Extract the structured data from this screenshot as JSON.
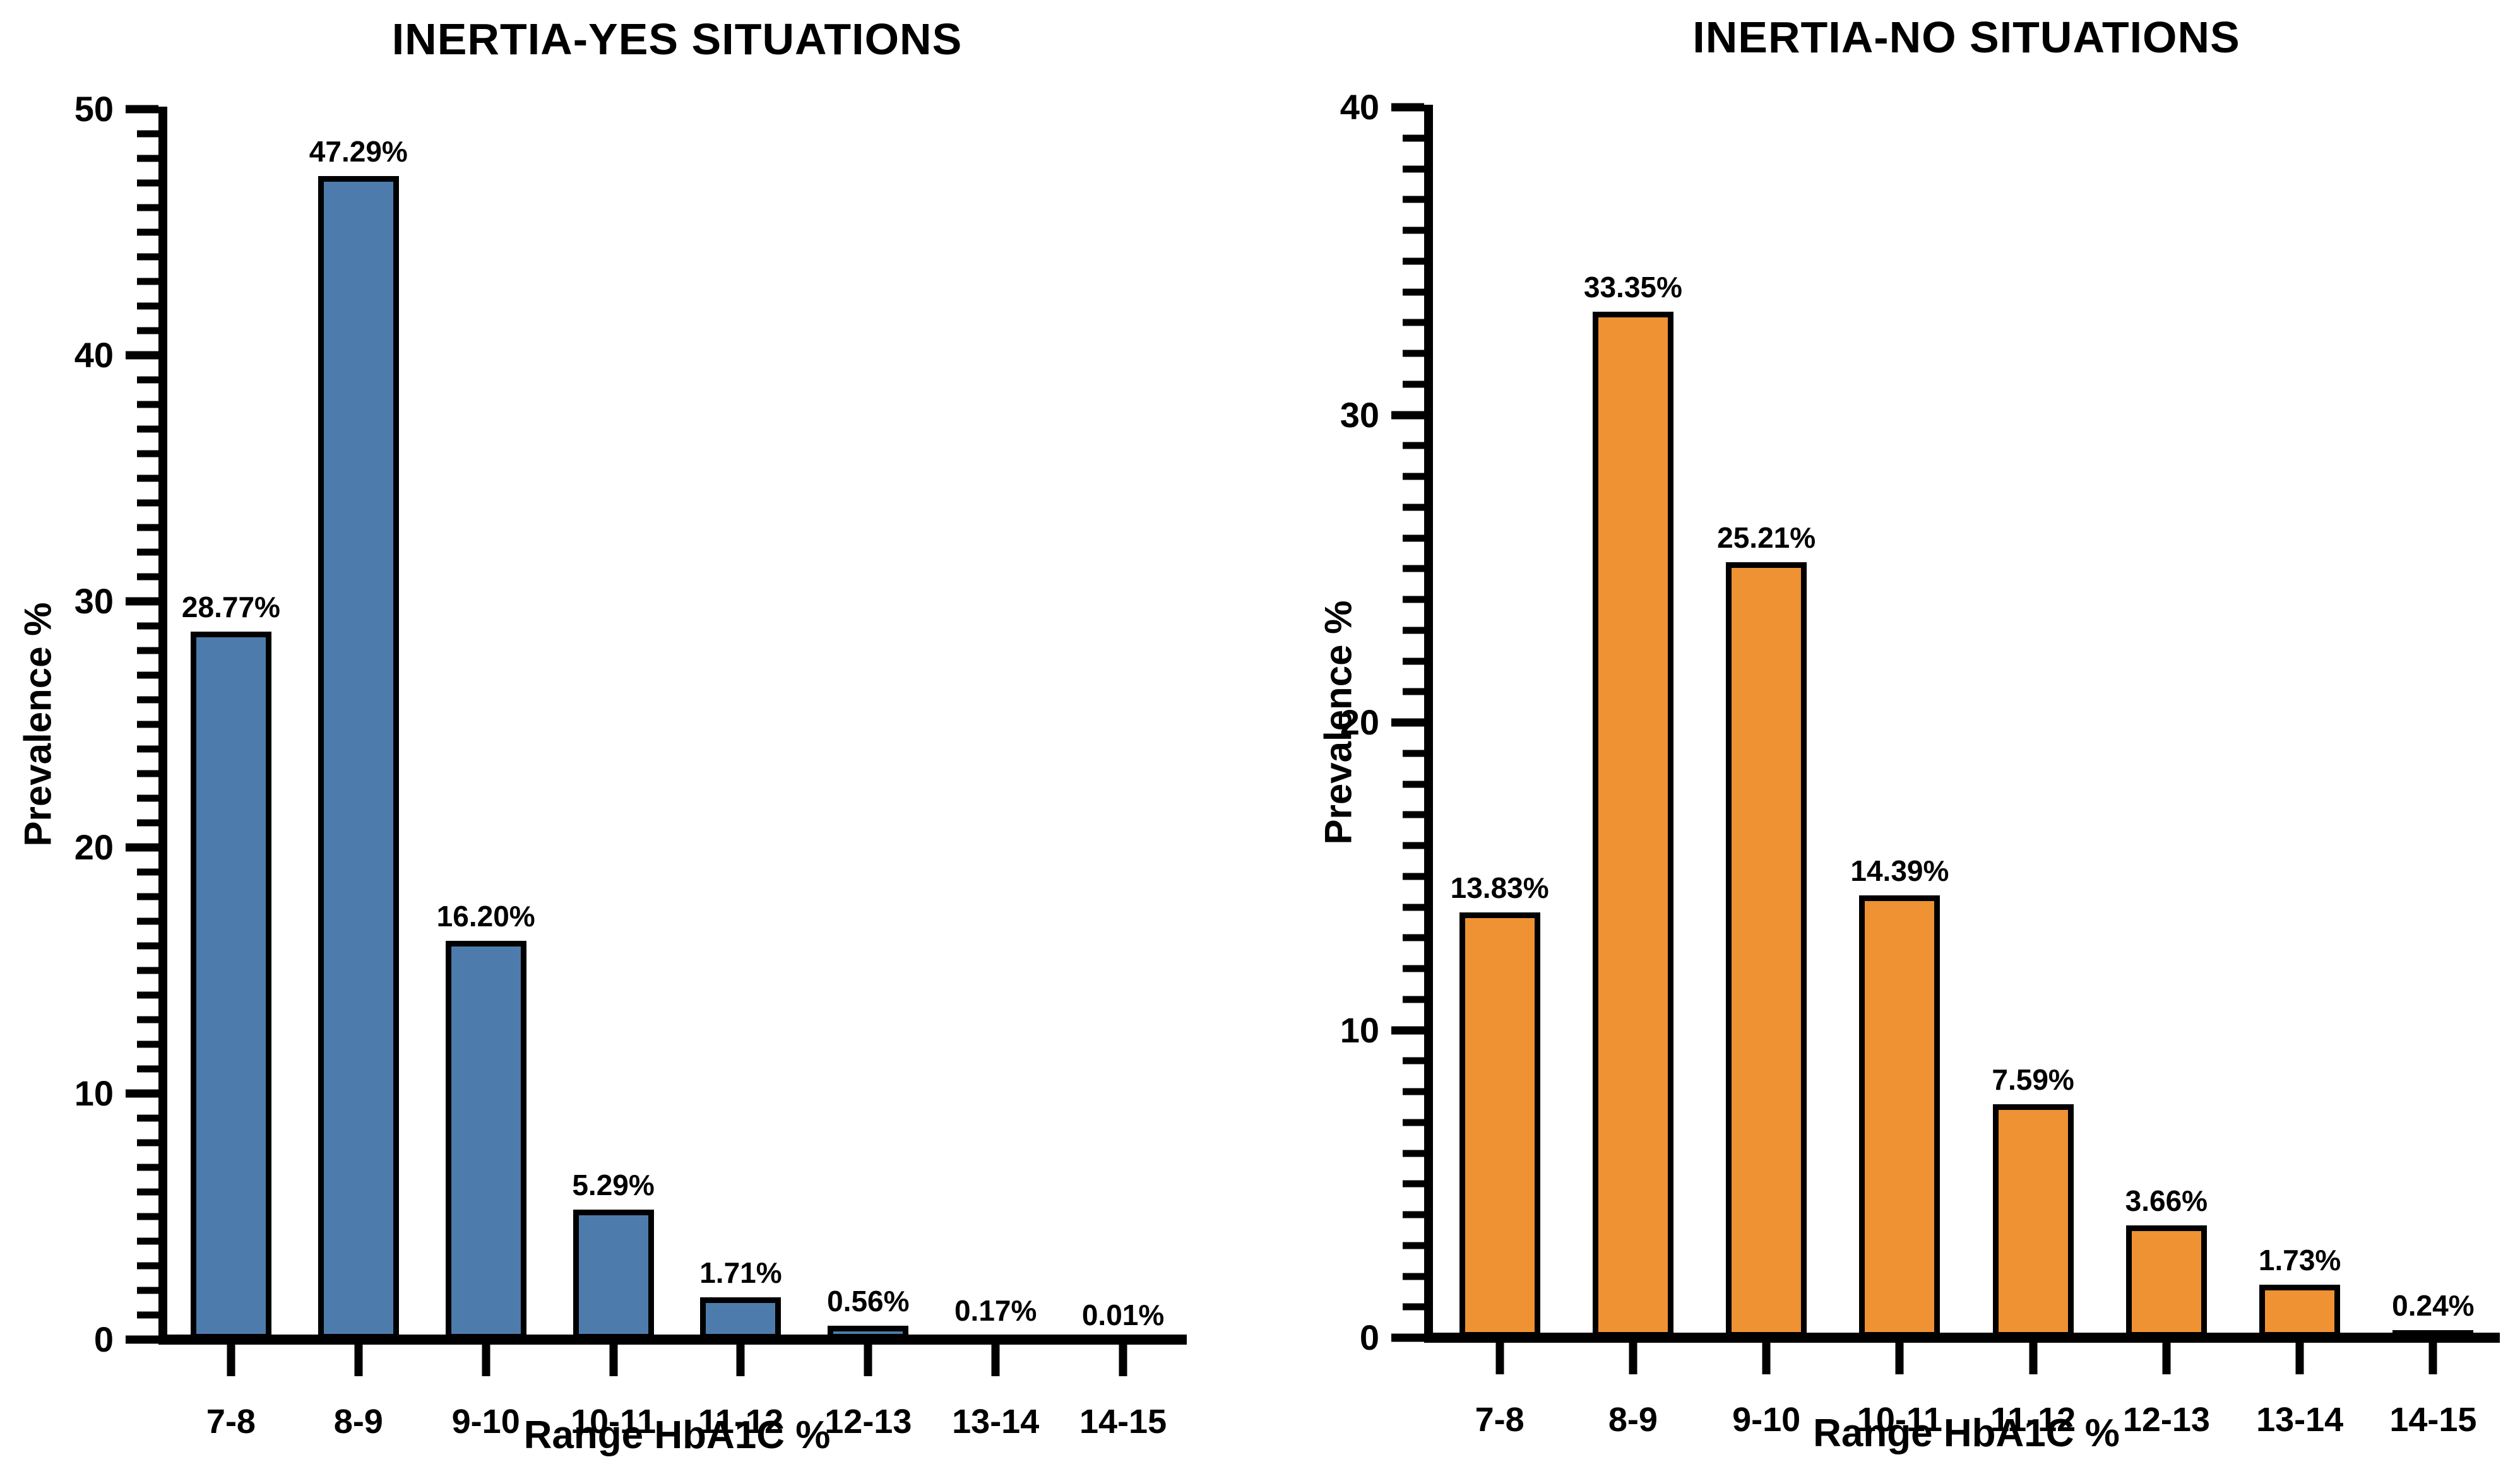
{
  "page": {
    "background": "#ffffff",
    "text_color": "#000000"
  },
  "chart_data": [
    {
      "type": "bar",
      "title": "INERTIA-YES SITUATIONS",
      "xlabel": "Range HbA1C %",
      "ylabel": "Prevalence %",
      "categories": [
        "7-8",
        "8-9",
        "9-10",
        "10-11",
        "11-12",
        "12-13",
        "13-14",
        "14-15"
      ],
      "values": [
        28.77,
        47.29,
        16.2,
        5.29,
        1.71,
        0.56,
        0.17,
        0.01
      ],
      "value_labels": [
        "28.77%",
        "47.29%",
        "16.20%",
        "5.29%",
        "1.71%",
        "0.56%",
        "0.17%",
        "0.01%"
      ],
      "ylim": [
        0,
        50
      ],
      "y_major_step": 10,
      "y_minor_step": 1,
      "y_tick_labels": [
        "0",
        "10",
        "20",
        "30",
        "40",
        "50"
      ],
      "bar_color": "#4d7cac",
      "bar_border_color": "#000000",
      "grid": false,
      "legend": "none"
    },
    {
      "type": "bar",
      "title": "INERTIA-NO SITUATIONS",
      "xlabel": "Range HbA1C %",
      "ylabel": "Prevalence %",
      "categories": [
        "7-8",
        "8-9",
        "9-10",
        "10-11",
        "11-12",
        "12-13",
        "13-14",
        "14-15"
      ],
      "values": [
        13.83,
        33.35,
        25.21,
        14.39,
        7.59,
        3.66,
        1.73,
        0.24
      ],
      "value_labels": [
        "13.83%",
        "33.35%",
        "25.21%",
        "14.39%",
        "7.59%",
        "3.66%",
        "1.73%",
        "0.24%"
      ],
      "ylim": [
        0,
        40
      ],
      "y_major_step": 10,
      "y_minor_step": 1,
      "y_tick_labels": [
        "0",
        "10",
        "20",
        "30",
        "40"
      ],
      "bar_color": "#ee9233",
      "bar_border_color": "#000000",
      "grid": false,
      "legend": "none"
    }
  ]
}
